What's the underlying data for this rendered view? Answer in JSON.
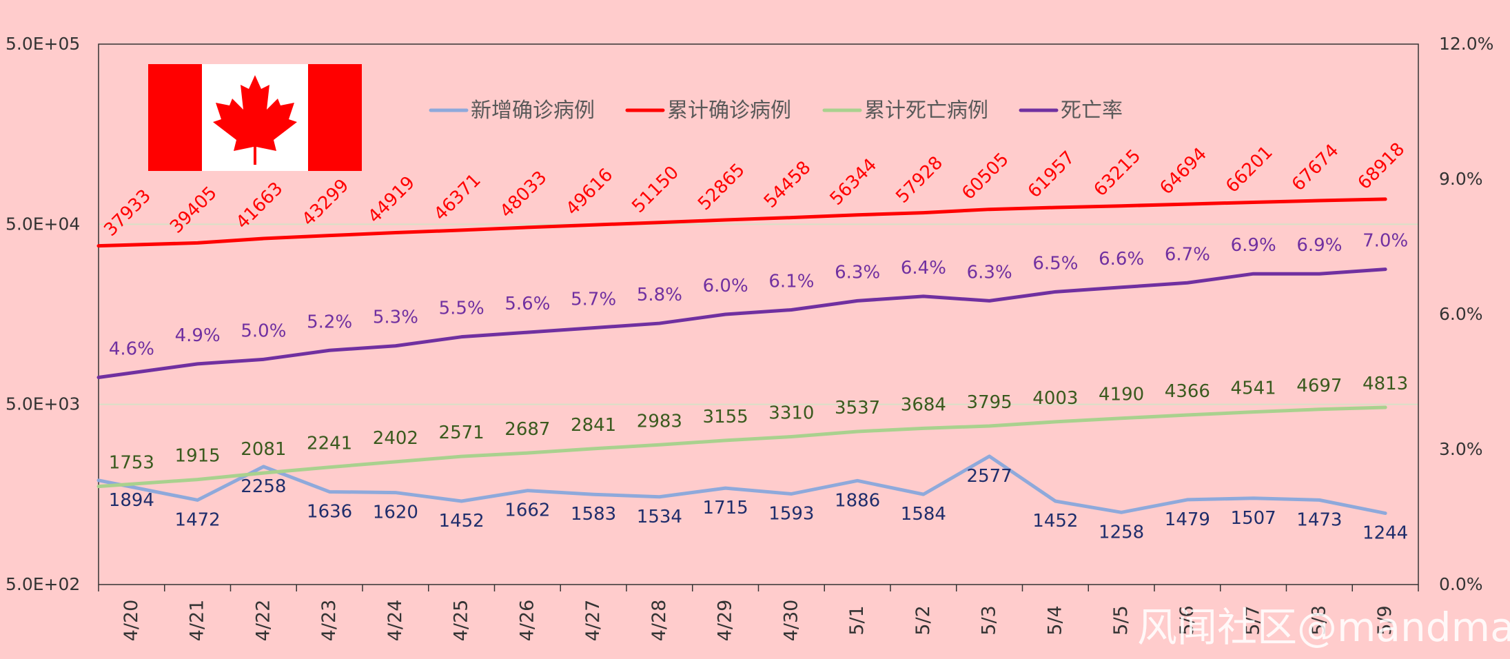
{
  "chart_data": {
    "type": "line",
    "categories": [
      "4/20",
      "4/21",
      "4/22",
      "4/23",
      "4/24",
      "4/25",
      "4/26",
      "4/27",
      "4/28",
      "4/29",
      "4/30",
      "5/1",
      "5/2",
      "5/3",
      "5/4",
      "5/5",
      "5/6",
      "5/7",
      "5/8",
      "5/9"
    ],
    "y_left": {
      "scale": "log",
      "range": [
        500,
        500000
      ],
      "tick_values": [
        500,
        5000,
        50000,
        500000
      ],
      "tick_labels": [
        "5.0E+02",
        "5.0E+03",
        "5.0E+04",
        "5.0E+05"
      ]
    },
    "y_right": {
      "scale": "linear",
      "range": [
        0,
        12
      ],
      "unit": "%",
      "tick_values": [
        0,
        3,
        6,
        9,
        12
      ],
      "tick_labels": [
        "0.0%",
        "3.0%",
        "6.0%",
        "9.0%",
        "12.0%"
      ]
    },
    "grid": "horizontal at major left ticks",
    "legend_position": "top",
    "series": [
      {
        "name": "新增确诊病例",
        "axis": "left",
        "color": "#8EA9DB",
        "label_color": "#1F2D6B",
        "values": [
          1894,
          1472,
          2258,
          1636,
          1620,
          1452,
          1662,
          1583,
          1534,
          1715,
          1593,
          1886,
          1584,
          2577,
          1452,
          1258,
          1479,
          1507,
          1473,
          1244
        ],
        "labels": [
          "1894",
          "1472",
          "2258",
          "1636",
          "1620",
          "1452",
          "1662",
          "1583",
          "1534",
          "1715",
          "1593",
          "1886",
          "1584",
          "2577",
          "1452",
          "1258",
          "1479",
          "1507",
          "1473",
          "1244"
        ]
      },
      {
        "name": "累计确诊病例",
        "axis": "left",
        "color": "#FF0000",
        "label_color": "#FF0000",
        "values": [
          37933,
          39405,
          41663,
          43299,
          44919,
          46371,
          48033,
          49616,
          51150,
          52865,
          54458,
          56344,
          57928,
          60505,
          61957,
          63215,
          64694,
          66201,
          67674,
          68918
        ],
        "labels": [
          "37933",
          "39405",
          "41663",
          "43299",
          "44919",
          "46371",
          "48033",
          "49616",
          "51150",
          "52865",
          "54458",
          "56344",
          "57928",
          "60505",
          "61957",
          "63215",
          "64694",
          "66201",
          "67674",
          "68918"
        ]
      },
      {
        "name": "累计死亡病例",
        "axis": "left",
        "color": "#A9D18E",
        "label_color": "#3A5A1E",
        "values": [
          1753,
          1915,
          2081,
          2241,
          2402,
          2571,
          2687,
          2841,
          2983,
          3155,
          3310,
          3537,
          3684,
          3795,
          4003,
          4190,
          4366,
          4541,
          4697,
          4813
        ],
        "labels": [
          "1753",
          "1915",
          "2081",
          "2241",
          "2402",
          "2571",
          "2687",
          "2841",
          "2983",
          "3155",
          "3310",
          "3537",
          "3684",
          "3795",
          "4003",
          "4190",
          "4366",
          "4541",
          "4697",
          "4813"
        ]
      },
      {
        "name": "死亡率",
        "axis": "right",
        "color": "#7030A0",
        "label_color": "#7030A0",
        "values": [
          4.6,
          4.9,
          5.0,
          5.2,
          5.3,
          5.5,
          5.6,
          5.7,
          5.8,
          6.0,
          6.1,
          6.3,
          6.4,
          6.3,
          6.5,
          6.6,
          6.7,
          6.9,
          6.9,
          7.0
        ],
        "labels": [
          "4.6%",
          "4.9%",
          "5.0%",
          "5.2%",
          "5.3%",
          "5.5%",
          "5.6%",
          "5.7%",
          "5.8%",
          "6.0%",
          "6.1%",
          "6.3%",
          "6.4%",
          "6.3%",
          "6.5%",
          "6.6%",
          "6.7%",
          "6.9%",
          "6.9%",
          "7.0%"
        ]
      }
    ]
  },
  "flag": {
    "name": "canada-flag",
    "red": "#FF0000",
    "white": "#FFFFFF"
  },
  "watermark": "风闻社区@mandman",
  "colors": {
    "background": "#FFCCCC",
    "axis": "#333333",
    "gridline": "#D8E0C6"
  }
}
